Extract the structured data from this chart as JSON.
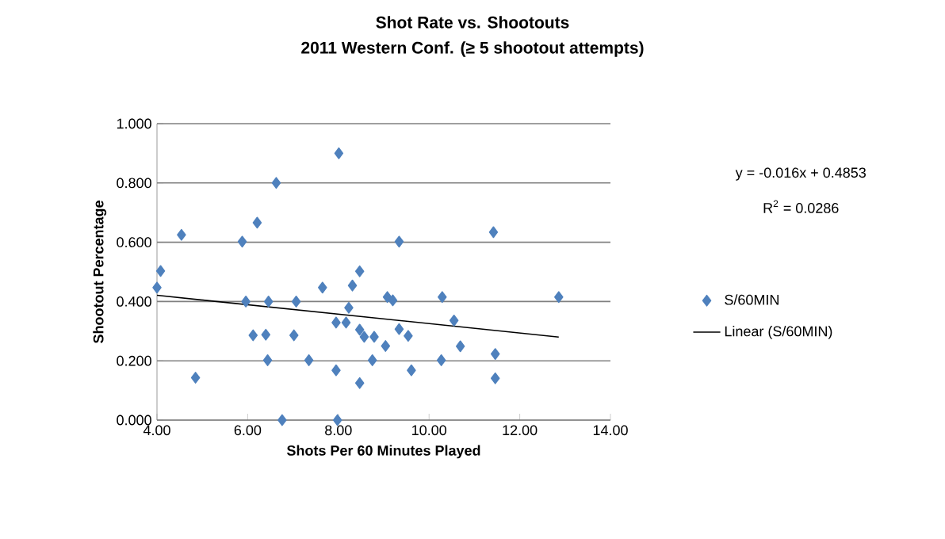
{
  "chart_data": {
    "type": "scatter",
    "title": "Shot Rate vs. Shootouts",
    "subtitle": "2011 Western Conf. (≥ 5 shootout attempts)",
    "xlabel": "Shots Per 60 Minutes Played",
    "ylabel": "Shootout Percentage",
    "xlim": [
      4,
      14
    ],
    "xticks": [
      {
        "value": 4,
        "label": "4.00"
      },
      {
        "value": 6,
        "label": "6.00"
      },
      {
        "value": 8,
        "label": "8.00"
      },
      {
        "value": 10,
        "label": "10.00"
      },
      {
        "value": 12,
        "label": "12.00"
      },
      {
        "value": 14,
        "label": "14.00"
      }
    ],
    "ylim": [
      0,
      1
    ],
    "yticks": [
      {
        "value": 0,
        "label": "0.000"
      },
      {
        "value": 0.2,
        "label": "0.200"
      },
      {
        "value": 0.4,
        "label": "0.400"
      },
      {
        "value": 0.6,
        "label": "0.600"
      },
      {
        "value": 0.8,
        "label": "0.800"
      },
      {
        "value": 1,
        "label": "1.000"
      }
    ],
    "grid": "y",
    "legend": "right",
    "series": [
      {
        "name": "S/60MIN",
        "marker": "diamond",
        "color": "#4f81bd",
        "x": [
          4.0,
          4.08,
          4.54,
          4.85,
          5.88,
          5.96,
          6.21,
          6.12,
          6.4,
          6.46,
          6.44,
          6.63,
          6.76,
          7.02,
          7.07,
          7.35,
          7.65,
          8.01,
          7.98,
          7.95,
          7.95,
          8.17,
          8.23,
          8.31,
          8.47,
          8.47,
          8.57,
          8.47,
          8.75,
          8.79,
          9.04,
          9.08,
          9.2,
          9.34,
          9.34,
          9.54,
          9.61,
          10.29,
          10.27,
          10.55,
          10.69,
          11.42,
          11.46,
          11.46,
          12.86
        ],
        "values": [
          0.447,
          0.503,
          0.625,
          0.143,
          0.602,
          0.4,
          0.666,
          0.286,
          0.288,
          0.4,
          0.202,
          0.8,
          0.0,
          0.286,
          0.4,
          0.202,
          0.447,
          0.9,
          0.0,
          0.168,
          0.329,
          0.329,
          0.379,
          0.454,
          0.502,
          0.305,
          0.281,
          0.125,
          0.202,
          0.281,
          0.25,
          0.415,
          0.404,
          0.602,
          0.307,
          0.284,
          0.168,
          0.415,
          0.202,
          0.336,
          0.249,
          0.634,
          0.223,
          0.141,
          0.415
        ]
      },
      {
        "name": "Linear (S/60MIN)",
        "type": "line",
        "marker": "none",
        "color": "#000000",
        "x": [
          4.0,
          12.86
        ],
        "values": [
          0.421,
          0.28
        ]
      }
    ],
    "annotations": [
      "y = -0.016x + 0.4853",
      "R$^{2}$ = 0.0286"
    ]
  }
}
